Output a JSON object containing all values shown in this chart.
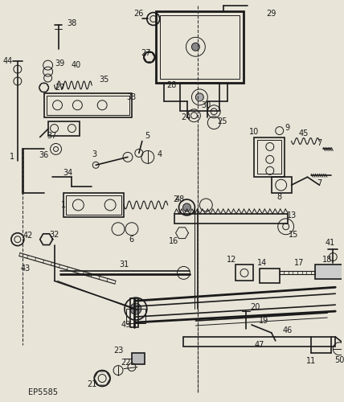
{
  "background_color": "#e8e4d8",
  "fig_width": 4.28,
  "fig_height": 5.0,
  "dpi": 100,
  "diagram_code": "EP5585",
  "lc": "#1a1a1a",
  "lw_thick": 2.0,
  "lw_med": 1.2,
  "lw_thin": 0.7
}
